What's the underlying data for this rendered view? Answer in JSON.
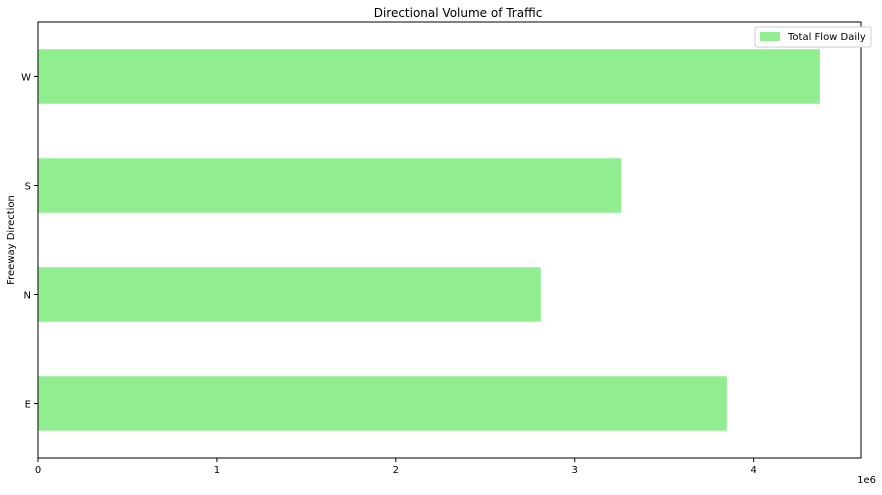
{
  "chart_data": {
    "type": "bar",
    "orientation": "horizontal",
    "title": "Directional Volume of Traffic",
    "xlabel": "",
    "ylabel": "Freeway Direction",
    "categories": [
      "E",
      "N",
      "S",
      "W"
    ],
    "series": [
      {
        "name": "Total Flow Daily",
        "values": [
          3850000,
          2810000,
          3260000,
          4370000
        ],
        "color": "#90ee90"
      }
    ],
    "xlim": [
      0,
      4600000
    ],
    "xticks": [
      0,
      1000000,
      2000000,
      3000000,
      4000000
    ],
    "xtick_labels": [
      "0",
      "1",
      "2",
      "3",
      "4"
    ],
    "x_offset_label": "1e6",
    "legend_position": "upper right",
    "grid": false
  }
}
